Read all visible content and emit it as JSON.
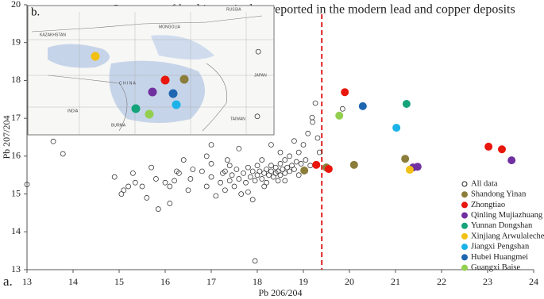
{
  "chart_data": {
    "type": "scatter",
    "title": "Summary of lead isotopic data reported in the modern lead and copper deposits",
    "x_label": "Pb 206/204",
    "y_label": "Pb 207/204",
    "panel_label": "a.",
    "xlim": [
      13,
      24
    ],
    "ylim": [
      13,
      20
    ],
    "xticks": [
      13,
      14,
      15,
      16,
      17,
      18,
      19,
      20,
      21,
      22,
      23,
      24
    ],
    "yticks": [
      13,
      14,
      15,
      16,
      17,
      18,
      19,
      20
    ],
    "reference_line_x": 19.4,
    "reference_line_color": "#e02020",
    "legend": "lower right",
    "series": [
      {
        "name": "All data",
        "color": "none",
        "x": [
          13.0,
          13.57,
          13.78,
          14.9,
          15.05,
          15.1,
          15.3,
          15.35,
          15.5,
          15.6,
          15.7,
          15.8,
          15.85,
          16.0,
          16.1,
          16.2,
          16.25,
          16.3,
          16.1,
          16.4,
          16.5,
          16.55,
          16.8,
          16.9,
          17.0,
          17.0,
          17.1,
          17.2,
          17.25,
          17.3,
          17.35,
          17.4,
          17.45,
          17.5,
          17.55,
          17.6,
          17.65,
          17.7,
          17.75,
          17.8,
          17.85,
          17.9,
          17.9,
          17.95,
          18.0,
          18.0,
          18.05,
          18.1,
          18.1,
          18.15,
          18.2,
          18.2,
          18.25,
          18.3,
          18.3,
          18.35,
          18.4,
          18.4,
          18.45,
          18.5,
          18.5,
          18.55,
          18.6,
          18.6,
          18.65,
          18.7,
          18.7,
          18.75,
          18.8,
          18.85,
          18.9,
          18.95,
          19.0,
          19.05,
          19.1,
          19.15,
          19.19,
          19.26,
          19.31,
          19.35,
          18.02,
          17.95,
          18.3,
          17.6,
          16.9,
          18.8,
          17.0,
          18.5,
          19.2,
          17.3,
          18.15,
          17.8,
          18.45,
          16.6,
          15.2,
          19.85,
          18.0,
          17.4,
          18.6,
          18.9
        ],
        "values": [
          15.25,
          16.39,
          16.06,
          15.45,
          15.0,
          15.1,
          15.55,
          15.3,
          15.2,
          14.9,
          15.7,
          15.4,
          14.6,
          15.3,
          15.2,
          15.35,
          15.6,
          15.55,
          14.75,
          15.9,
          15.1,
          15.4,
          15.6,
          15.2,
          15.45,
          15.8,
          14.95,
          15.3,
          15.55,
          15.1,
          15.9,
          15.35,
          15.5,
          15.2,
          15.65,
          15.4,
          15.0,
          15.55,
          15.3,
          15.7,
          15.45,
          15.6,
          14.85,
          15.35,
          15.5,
          15.75,
          15.6,
          15.4,
          15.9,
          15.55,
          15.65,
          15.3,
          15.5,
          15.6,
          15.75,
          15.45,
          15.55,
          15.7,
          15.6,
          15.5,
          15.8,
          15.65,
          15.55,
          15.9,
          15.7,
          15.6,
          16.0,
          15.75,
          15.65,
          15.85,
          16.1,
          15.8,
          16.3,
          15.9,
          16.6,
          15.75,
          17.02,
          17.4,
          16.48,
          16.1,
          18.76,
          13.23,
          16.3,
          16.2,
          16.0,
          16.4,
          16.3,
          16.1,
          16.9,
          15.6,
          15.2,
          15.05,
          15.35,
          15.65,
          15.2,
          17.25,
          17.05,
          15.75,
          15.35,
          15.5
        ]
      },
      {
        "name": "Shandong Yinan",
        "color": "#8b7d3a",
        "x": [
          19.02,
          19.5,
          20.1,
          21.21
        ],
        "values": [
          15.62,
          15.7,
          15.77,
          15.93
        ]
      },
      {
        "name": "Zhongtiao",
        "color": "#e8160c",
        "x": [
          19.28,
          19.55,
          19.9,
          23.02,
          23.31
        ],
        "values": [
          15.77,
          15.66,
          17.69,
          16.25,
          16.18
        ]
      },
      {
        "name": "Qinling Mujiazhuang",
        "color": "#7030a0",
        "x": [
          21.38,
          21.48,
          23.52
        ],
        "values": [
          15.7,
          15.72,
          15.89
        ]
      },
      {
        "name": "Yunnan Dongshan",
        "color": "#14a37a",
        "x": [
          21.24
        ],
        "values": [
          17.38
        ]
      },
      {
        "name": "Xinjiang Arwulalecheng",
        "color": "#f2c012",
        "x": [
          21.31
        ],
        "values": [
          15.64
        ]
      },
      {
        "name": "Jiangxi Pengshan",
        "color": "#1ab2e8",
        "x": [
          21.02
        ],
        "values": [
          16.75
        ]
      },
      {
        "name": "Hubei Huangmei",
        "color": "#1f66b0",
        "x": [
          20.29
        ],
        "values": [
          17.32
        ]
      },
      {
        "name": "Guangxi Baise",
        "color": "#93cf4f",
        "x": [
          19.78
        ],
        "values": [
          17.07
        ]
      }
    ],
    "inset": {
      "label": "b.",
      "map_labels": [
        "KAZAKHSTAN",
        "MONGOLIA",
        "RUSSIA",
        "C H I N A",
        "INDIA",
        "BURMA",
        "TAIWAN",
        "JAPAN"
      ]
    }
  }
}
